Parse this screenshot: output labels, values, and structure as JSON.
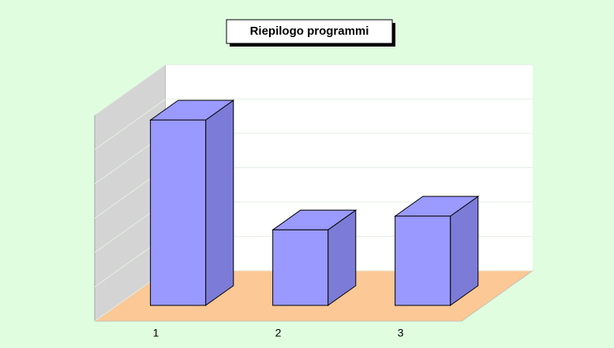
{
  "chart_data": {
    "type": "bar3d",
    "title": "Riepilogo programmi",
    "categories": [
      "1",
      "2",
      "3"
    ],
    "values": [
      5.4,
      2.2,
      2.6
    ],
    "color": "#9999ff",
    "ylim": [
      0,
      6
    ],
    "yticks": [
      0,
      1,
      2,
      3,
      4,
      5,
      6
    ],
    "grid": true
  }
}
